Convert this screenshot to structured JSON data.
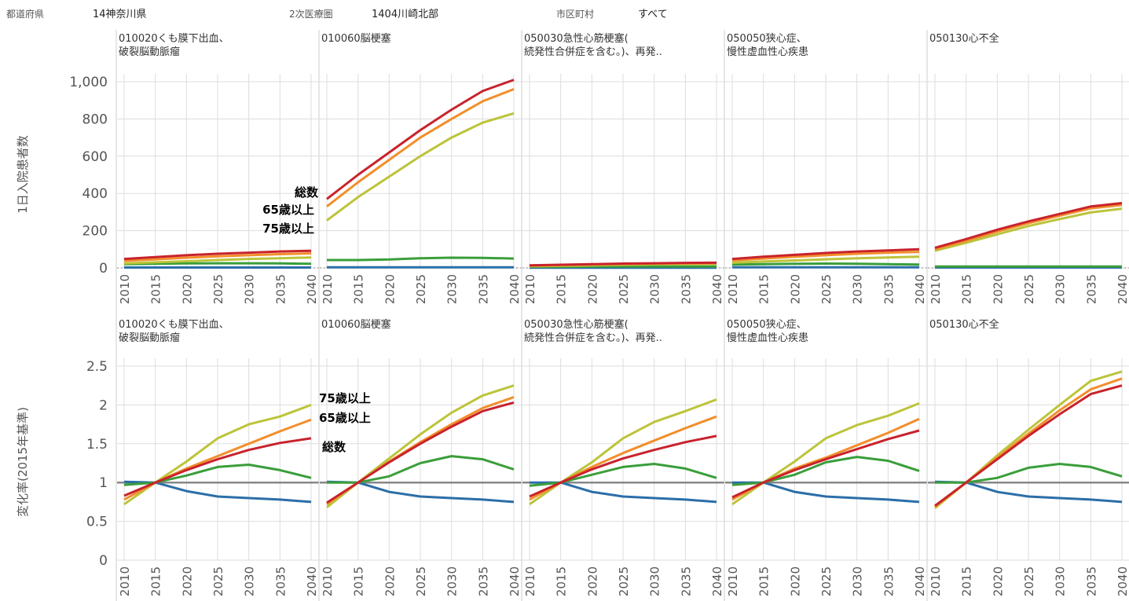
{
  "filters": [
    {
      "label": "都道府県",
      "value": "14神奈川県"
    },
    {
      "label": "2次医療圏",
      "value": "1404川崎北部"
    },
    {
      "label": "市区町村",
      "value": "すべて"
    }
  ],
  "colors": {
    "total": "#c8232c",
    "age65": "#f28e2b",
    "age75": "#bcc43a",
    "green": "#3a9e3a",
    "blue": "#2b6ea8",
    "baseline": "#888888",
    "grid": "#dddddd"
  },
  "annotations": {
    "top": [
      "総数",
      "65歳以上",
      "75歳以上"
    ],
    "bottom": [
      "75歳以上",
      "65歳以上",
      "総数"
    ]
  },
  "chart_data": [
    {
      "type": "line",
      "ylabel": "1日入院患者数",
      "ylim": [
        0,
        1000
      ],
      "yticks": [
        "0",
        "200",
        "400",
        "600",
        "800",
        "1,000"
      ],
      "ytick_values": [
        0,
        200,
        400,
        600,
        800,
        1000
      ],
      "x": [
        2010,
        2015,
        2020,
        2025,
        2030,
        2035,
        2040
      ],
      "zero_line": "dotted",
      "panels": [
        {
          "title": [
            "010020くも膜下出血、",
            "破裂脳動脈瘤"
          ],
          "series": [
            {
              "color_key": "total",
              "values": [
                48,
                58,
                68,
                76,
                82,
                88,
                92
              ]
            },
            {
              "color_key": "age65",
              "values": [
                38,
                46,
                55,
                62,
                68,
                74,
                78
              ]
            },
            {
              "color_key": "age75",
              "values": [
                24,
                30,
                36,
                42,
                48,
                52,
                56
              ]
            },
            {
              "color_key": "green",
              "values": [
                20,
                22,
                24,
                25,
                25,
                24,
                22
              ]
            },
            {
              "color_key": "blue",
              "values": [
                2,
                2,
                2,
                2,
                2,
                2,
                2
              ]
            }
          ]
        },
        {
          "title": [
            "010060脳梗塞"
          ],
          "series": [
            {
              "color_key": "total",
              "values": [
                370,
                500,
                620,
                740,
                850,
                950,
                1010
              ]
            },
            {
              "color_key": "age65",
              "values": [
                330,
                460,
                580,
                700,
                800,
                895,
                960
              ]
            },
            {
              "color_key": "age75",
              "values": [
                255,
                380,
                490,
                600,
                700,
                780,
                830
              ]
            },
            {
              "color_key": "green",
              "values": [
                42,
                42,
                45,
                52,
                55,
                54,
                50
              ]
            },
            {
              "color_key": "blue",
              "values": [
                3,
                3,
                3,
                3,
                3,
                3,
                3
              ]
            }
          ]
        },
        {
          "title": [
            "050030急性心筋梗塞(",
            "続発性合併症を含む。)、再発.."
          ],
          "series": [
            {
              "color_key": "total",
              "values": [
                14,
                17,
                20,
                23,
                25,
                27,
                28
              ]
            },
            {
              "color_key": "age65",
              "values": [
                12,
                15,
                18,
                21,
                23,
                24,
                25
              ]
            },
            {
              "color_key": "age75",
              "values": [
                9,
                11,
                14,
                17,
                19,
                20,
                21
              ]
            },
            {
              "color_key": "green",
              "values": [
                6,
                6,
                7,
                7,
                7,
                7,
                7
              ]
            },
            {
              "color_key": "blue",
              "values": [
                1,
                1,
                1,
                1,
                1,
                1,
                1
              ]
            }
          ]
        },
        {
          "title": [
            "050050狭心症、",
            "慢性虚血性心疾患"
          ],
          "series": [
            {
              "color_key": "total",
              "values": [
                48,
                60,
                70,
                80,
                88,
                94,
                100
              ]
            },
            {
              "color_key": "age65",
              "values": [
                40,
                50,
                60,
                68,
                76,
                82,
                86
              ]
            },
            {
              "color_key": "age75",
              "values": [
                28,
                34,
                40,
                46,
                52,
                56,
                60
              ]
            },
            {
              "color_key": "green",
              "values": [
                18,
                20,
                22,
                23,
                22,
                20,
                18
              ]
            },
            {
              "color_key": "blue",
              "values": [
                3,
                3,
                3,
                3,
                3,
                3,
                3
              ]
            }
          ]
        },
        {
          "title": [
            "050130心不全"
          ],
          "series": [
            {
              "color_key": "total",
              "values": [
                108,
                155,
                205,
                250,
                290,
                330,
                348
              ]
            },
            {
              "color_key": "age65",
              "values": [
                100,
                145,
                195,
                240,
                280,
                320,
                338
              ]
            },
            {
              "color_key": "age75",
              "values": [
                92,
                135,
                180,
                225,
                262,
                298,
                318
              ]
            },
            {
              "color_key": "green",
              "values": [
                7,
                7,
                7,
                7,
                7,
                7,
                7
              ]
            },
            {
              "color_key": "blue",
              "values": [
                2,
                2,
                2,
                2,
                2,
                2,
                2
              ]
            }
          ]
        }
      ]
    },
    {
      "type": "line",
      "ylabel": "変化率(2015年基準)",
      "ylim": [
        0,
        2.5
      ],
      "yticks": [
        "0",
        "0.5",
        "1",
        "1.5",
        "2",
        "2.5"
      ],
      "ytick_values": [
        0,
        0.5,
        1,
        1.5,
        2,
        2.5
      ],
      "x": [
        2010,
        2015,
        2020,
        2025,
        2030,
        2035,
        2040
      ],
      "baseline": 1,
      "panels": [
        {
          "title": [
            "010020くも膜下出血、",
            "破裂脳動脈瘤"
          ],
          "series": [
            {
              "color_key": "total",
              "values": [
                0.83,
                1.0,
                1.16,
                1.3,
                1.42,
                1.51,
                1.57
              ]
            },
            {
              "color_key": "age65",
              "values": [
                0.78,
                1.0,
                1.18,
                1.34,
                1.5,
                1.66,
                1.81
              ]
            },
            {
              "color_key": "age75",
              "values": [
                0.72,
                1.0,
                1.27,
                1.57,
                1.75,
                1.85,
                2.0
              ]
            },
            {
              "color_key": "green",
              "values": [
                0.97,
                1.0,
                1.09,
                1.2,
                1.23,
                1.16,
                1.06
              ]
            },
            {
              "color_key": "blue",
              "values": [
                1.01,
                1.0,
                0.89,
                0.82,
                0.8,
                0.78,
                0.75
              ]
            }
          ]
        },
        {
          "title": [
            "010060脳梗塞"
          ],
          "series": [
            {
              "color_key": "total",
              "values": [
                0.74,
                1.0,
                1.26,
                1.5,
                1.72,
                1.92,
                2.03
              ]
            },
            {
              "color_key": "age65",
              "values": [
                0.72,
                1.0,
                1.27,
                1.52,
                1.75,
                1.96,
                2.1
              ]
            },
            {
              "color_key": "age75",
              "values": [
                0.68,
                1.0,
                1.31,
                1.62,
                1.9,
                2.12,
                2.25
              ]
            },
            {
              "color_key": "green",
              "values": [
                1.0,
                1.0,
                1.08,
                1.25,
                1.34,
                1.3,
                1.17
              ]
            },
            {
              "color_key": "blue",
              "values": [
                1.01,
                1.0,
                0.88,
                0.82,
                0.8,
                0.78,
                0.75
              ]
            }
          ]
        },
        {
          "title": [
            "050030急性心筋梗塞(",
            "続発性合併症を含む。)、再発.."
          ],
          "series": [
            {
              "color_key": "total",
              "values": [
                0.82,
                1.0,
                1.17,
                1.31,
                1.42,
                1.52,
                1.6
              ]
            },
            {
              "color_key": "age65",
              "values": [
                0.78,
                1.0,
                1.2,
                1.38,
                1.54,
                1.7,
                1.85
              ]
            },
            {
              "color_key": "age75",
              "values": [
                0.72,
                1.0,
                1.26,
                1.57,
                1.78,
                1.92,
                2.07
              ]
            },
            {
              "color_key": "green",
              "values": [
                0.96,
                1.0,
                1.1,
                1.2,
                1.24,
                1.18,
                1.06
              ]
            },
            {
              "color_key": "blue",
              "values": [
                1.0,
                1.0,
                0.88,
                0.82,
                0.8,
                0.78,
                0.75
              ]
            }
          ]
        },
        {
          "title": [
            "050050狭心症、",
            "慢性虚血性心疾患"
          ],
          "series": [
            {
              "color_key": "total",
              "values": [
                0.81,
                1.0,
                1.16,
                1.3,
                1.43,
                1.56,
                1.67
              ]
            },
            {
              "color_key": "age65",
              "values": [
                0.78,
                1.0,
                1.18,
                1.32,
                1.48,
                1.64,
                1.82
              ]
            },
            {
              "color_key": "age75",
              "values": [
                0.72,
                1.0,
                1.27,
                1.57,
                1.74,
                1.86,
                2.02
              ]
            },
            {
              "color_key": "green",
              "values": [
                0.97,
                1.0,
                1.1,
                1.26,
                1.33,
                1.28,
                1.15
              ]
            },
            {
              "color_key": "blue",
              "values": [
                1.0,
                1.0,
                0.88,
                0.82,
                0.8,
                0.78,
                0.75
              ]
            }
          ]
        },
        {
          "title": [
            "050130心不全"
          ],
          "series": [
            {
              "color_key": "total",
              "values": [
                0.7,
                1.0,
                1.3,
                1.6,
                1.88,
                2.14,
                2.25
              ]
            },
            {
              "color_key": "age65",
              "values": [
                0.69,
                1.0,
                1.32,
                1.63,
                1.93,
                2.2,
                2.34
              ]
            },
            {
              "color_key": "age75",
              "values": [
                0.67,
                1.0,
                1.35,
                1.68,
                2.0,
                2.31,
                2.43
              ]
            },
            {
              "color_key": "green",
              "values": [
                1.0,
                1.0,
                1.06,
                1.19,
                1.24,
                1.2,
                1.08
              ]
            },
            {
              "color_key": "blue",
              "values": [
                1.01,
                1.0,
                0.88,
                0.82,
                0.8,
                0.78,
                0.75
              ]
            }
          ]
        }
      ]
    }
  ]
}
